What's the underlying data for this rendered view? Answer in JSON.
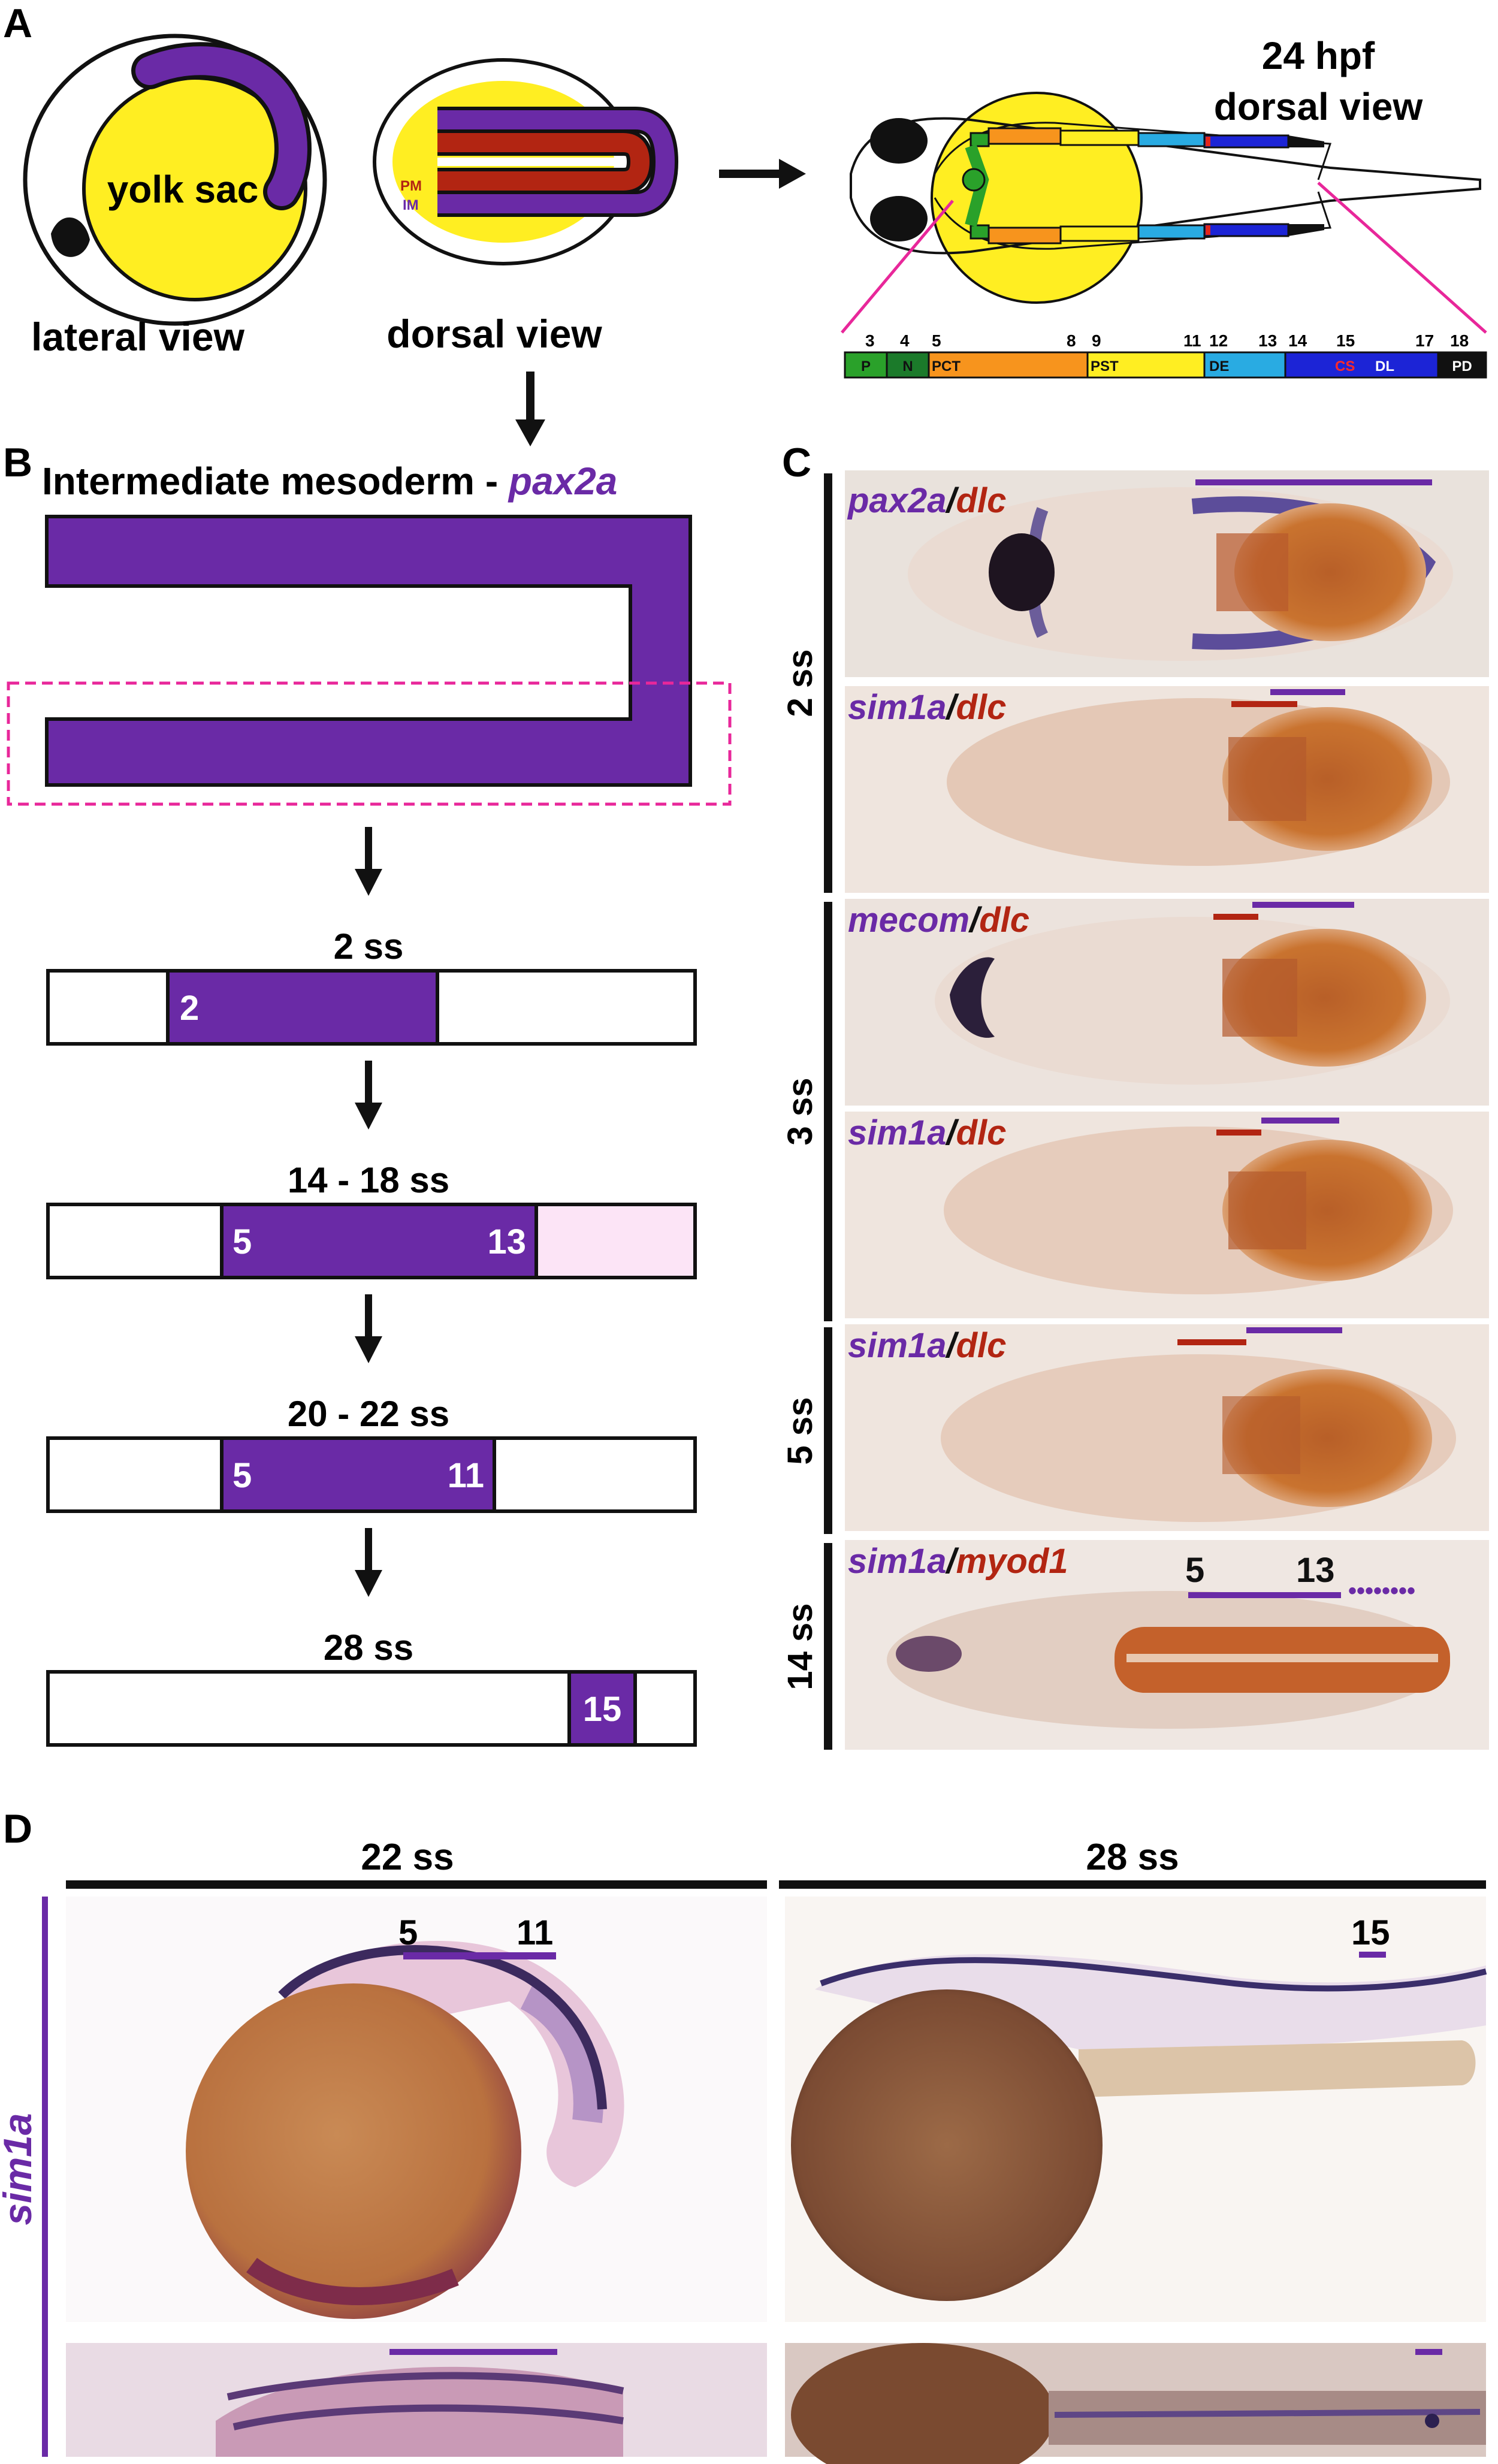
{
  "panels": {
    "a": "A",
    "b": "B",
    "c": "C",
    "d": "D"
  },
  "panel_a": {
    "lateral_label": "lateral view",
    "dorsal_label": "dorsal view",
    "yolk_label": "yolk sac",
    "pm_label": "PM",
    "im_label": "IM",
    "hpf_line1": "24 hpf",
    "hpf_line2": "dorsal view",
    "bar_numbers": [
      "3",
      "4",
      "5",
      "8",
      "9",
      "11",
      "12",
      "13",
      "14",
      "15",
      "17",
      "18"
    ],
    "segments": [
      {
        "label": "P",
        "color": "#2aa12a"
      },
      {
        "label": "N",
        "color": "#1b7a2a"
      },
      {
        "label": "PCT",
        "color": "#f7941d"
      },
      {
        "label": "PST",
        "color": "#ffee22"
      },
      {
        "label": "DE",
        "color": "#29abe2"
      },
      {
        "label": "CS",
        "color": "#1c24d6"
      },
      {
        "label": "DL",
        "color": "#1c24d6"
      },
      {
        "label": "PD",
        "color": "#111111"
      }
    ]
  },
  "panel_b": {
    "title_prefix": "Intermediate mesoderm - ",
    "title_gene": "pax2a",
    "stages": [
      {
        "label": "2 ss",
        "n1": "2",
        "n2": ""
      },
      {
        "label": "14 - 18 ss",
        "n1": "5",
        "n2": "13"
      },
      {
        "label": "20 - 22 ss",
        "n1": "5",
        "n2": "11"
      },
      {
        "label": "28 ss",
        "n1": "15",
        "n2": ""
      }
    ]
  },
  "panel_c": {
    "stage_labels": [
      "2 ss",
      "3 ss",
      "5 ss",
      "14 ss"
    ],
    "rows": [
      {
        "gene1": "pax2a",
        "gene2": "dlc"
      },
      {
        "gene1": "sim1a",
        "gene2": "dlc"
      },
      {
        "gene1": "mecom",
        "gene2": "dlc"
      },
      {
        "gene1": "sim1a",
        "gene2": "dlc"
      },
      {
        "gene1": "sim1a",
        "gene2": "dlc"
      },
      {
        "gene1": "sim1a",
        "gene2": "myod1"
      }
    ],
    "slash": "/",
    "last_numbers": [
      "5",
      "13"
    ]
  },
  "panel_d": {
    "gene_label": "sim1a",
    "col1_title": "22 ss",
    "col2_title": "28 ss",
    "col1_numbers": [
      "5",
      "11"
    ],
    "col2_numbers": [
      "15"
    ]
  },
  "colors": {
    "purple": "#6a2aa6",
    "red": "#b22512",
    "magenta": "#e8279a",
    "yolk": "#ffee22",
    "pink": "#fce4f6"
  }
}
